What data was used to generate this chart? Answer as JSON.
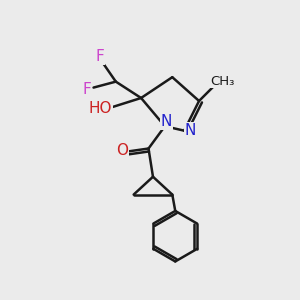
{
  "bg_color": "#ebebeb",
  "bond_color": "#1a1a1a",
  "bond_width": 1.8,
  "atom_colors": {
    "F": "#cc44cc",
    "O": "#cc2222",
    "N": "#2222cc",
    "H": "#448888",
    "C": "#1a1a1a"
  },
  "font_size_atom": 11,
  "font_size_methyl": 10
}
